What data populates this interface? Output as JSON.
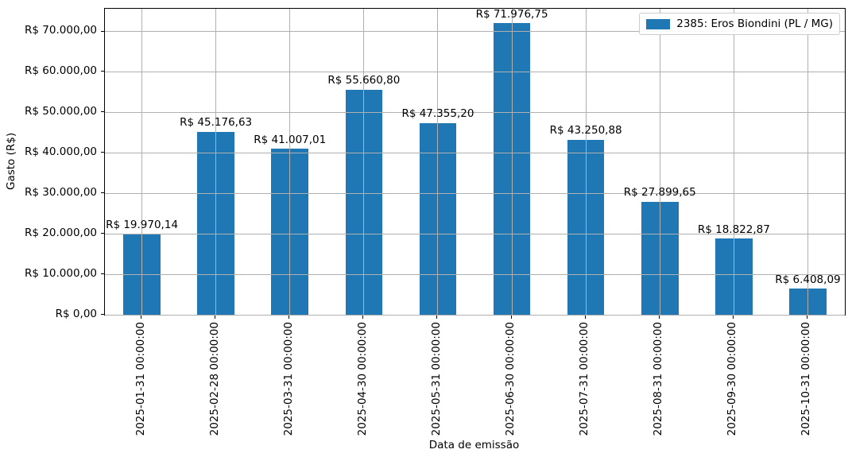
{
  "chart_data": {
    "type": "bar",
    "title": "",
    "xlabel": "Data de emissão",
    "ylabel": "Gasto (R$)",
    "categories": [
      "2025-01-31 00:00:00",
      "2025-02-28 00:00:00",
      "2025-03-31 00:00:00",
      "2025-04-30 00:00:00",
      "2025-05-31 00:00:00",
      "2025-06-30 00:00:00",
      "2025-07-31 00:00:00",
      "2025-08-31 00:00:00",
      "2025-09-30 00:00:00",
      "2025-10-31 00:00:00"
    ],
    "series": [
      {
        "name": "2385: Eros Biondini (PL / MG)",
        "values": [
          19970.14,
          45176.63,
          41007.01,
          55660.8,
          47355.2,
          71976.75,
          43250.88,
          27899.65,
          18822.87,
          6408.09
        ]
      }
    ],
    "bar_labels": [
      "R$ 19.970,14",
      "R$ 45.176,63",
      "R$ 41.007,01",
      "R$ 55.660,80",
      "R$ 47.355,20",
      "R$ 71.976,75",
      "R$ 43.250,88",
      "R$ 27.899,65",
      "R$ 18.822,87",
      "R$ 6.408,09"
    ],
    "yticks": {
      "values": [
        0,
        10000,
        20000,
        30000,
        40000,
        50000,
        60000,
        70000
      ],
      "labels": [
        "R$ 0,00",
        "R$ 10.000,00",
        "R$ 20.000,00",
        "R$ 30.000,00",
        "R$ 40.000,00",
        "R$ 50.000,00",
        "R$ 60.000,00",
        "R$ 70.000,00"
      ]
    },
    "ylim": [
      0,
      75600
    ],
    "grid": true,
    "legend": {
      "position": "upper right",
      "label": "2385: Eros Biondini (PL / MG)"
    },
    "colors": {
      "bar": "#1f77b4",
      "grid": "#b0b0b0",
      "spine": "#000000",
      "text": "#000000",
      "legend_border": "#cccccc",
      "background": "#ffffff"
    }
  }
}
